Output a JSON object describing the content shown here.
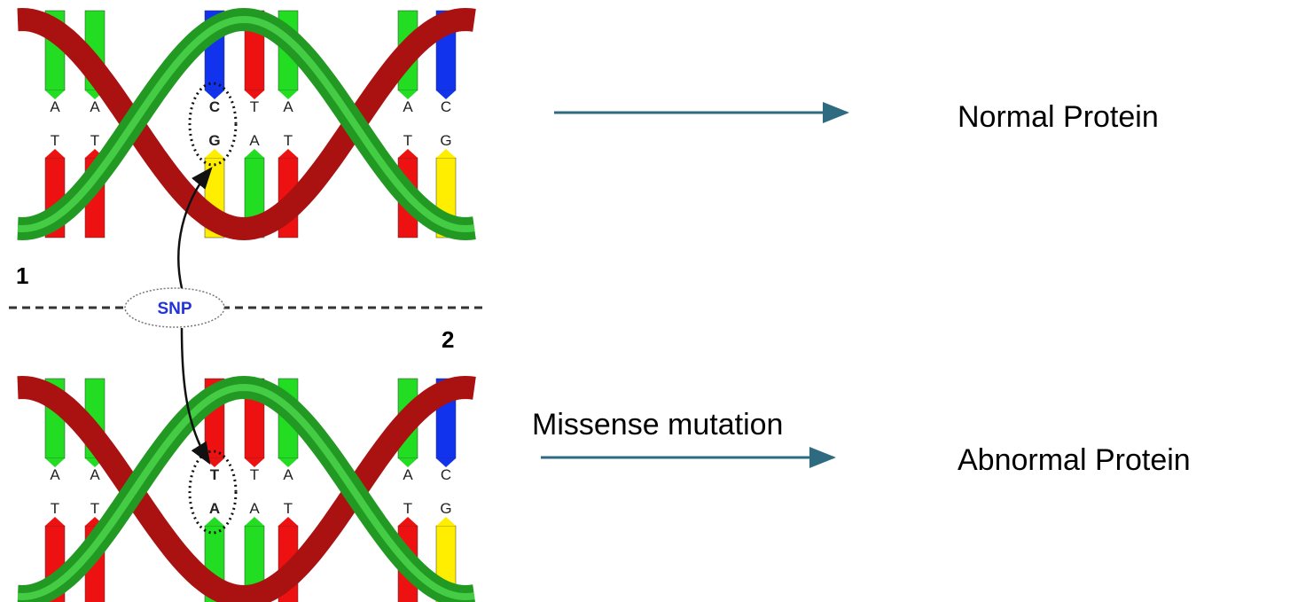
{
  "panels": [
    {
      "label": "1",
      "pairs": [
        {
          "top": "A",
          "bottom": "T"
        },
        {
          "top": "A",
          "bottom": "T"
        },
        {
          "top": "C",
          "bottom": "G"
        },
        {
          "top": "T",
          "bottom": "A"
        },
        {
          "top": "A",
          "bottom": "T"
        },
        {
          "top": "A",
          "bottom": "T"
        },
        {
          "top": "C",
          "bottom": "G"
        }
      ]
    },
    {
      "label": "2",
      "pairs": [
        {
          "top": "A",
          "bottom": "T"
        },
        {
          "top": "A",
          "bottom": "T"
        },
        {
          "top": "T",
          "bottom": "A"
        },
        {
          "top": "T",
          "bottom": "A"
        },
        {
          "top": "A",
          "bottom": "T"
        },
        {
          "top": "A",
          "bottom": "T"
        },
        {
          "top": "C",
          "bottom": "G"
        }
      ]
    }
  ],
  "snp_label": "SNP",
  "normal": {
    "label": "Normal Protein"
  },
  "abnormal": {
    "label": "Abnormal Protein",
    "arrow_label": "Missense mutation"
  }
}
